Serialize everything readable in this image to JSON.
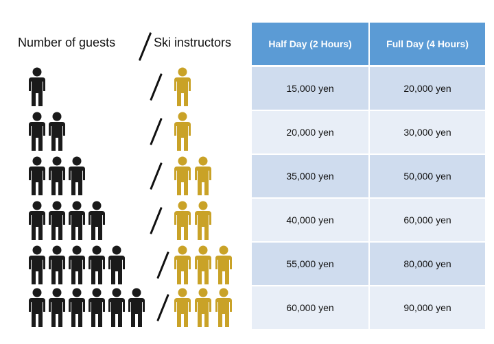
{
  "headers": {
    "guests": "Number of guests",
    "instructors": "Ski instructors"
  },
  "table": {
    "columns": [
      "Half Day (2 Hours)",
      "Full Day (4 Hours)"
    ],
    "rows": [
      {
        "guests": 1,
        "instructors": 1,
        "half_day": "15,000 yen",
        "full_day": "20,000 yen"
      },
      {
        "guests": 2,
        "instructors": 1,
        "half_day": "20,000 yen",
        "full_day": "30,000 yen"
      },
      {
        "guests": 3,
        "instructors": 2,
        "half_day": "35,000 yen",
        "full_day": "50,000 yen"
      },
      {
        "guests": 4,
        "instructors": 2,
        "half_day": "40,000 yen",
        "full_day": "60,000 yen"
      },
      {
        "guests": 5,
        "instructors": 3,
        "half_day": "55,000 yen",
        "full_day": "80,000 yen"
      },
      {
        "guests": 6,
        "instructors": 3,
        "half_day": "60,000 yen",
        "full_day": "90,000 yen"
      }
    ]
  },
  "colors": {
    "guest_icon": "#1a1a1a",
    "instructor_icon": "#c9a227",
    "header_bg": "#5b9bd5"
  },
  "icons": {
    "guest": "person-icon",
    "instructor": "person-icon"
  }
}
